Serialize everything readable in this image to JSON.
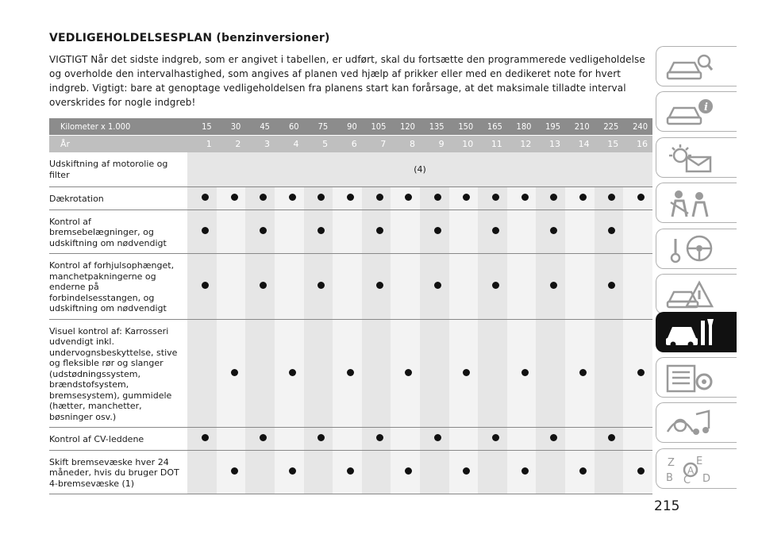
{
  "page": {
    "title": "VEDLIGEHOLDELSESPLAN (benzinversioner)",
    "intro": "VIGTIGT Når det sidste indgreb, som er angivet i tabellen, er udført, skal du fortsætte den programmerede vedligeholdelse og overholde den intervalhastighed, som angives af planen ved hjælp af prikker eller med en dedikeret note for hvert indgreb. Vigtigt: bare at genoptage vedligeholdelsen fra planens start kan forårsage, at det maksimale tilladte interval overskrides for nogle indgreb!",
    "page_number": "215"
  },
  "table": {
    "km_label": "Kilometer x 1.000",
    "km_values": [
      "15",
      "30",
      "45",
      "60",
      "75",
      "90",
      "105",
      "120",
      "135",
      "150",
      "165",
      "180",
      "195",
      "210",
      "225",
      "240"
    ],
    "year_label": "År",
    "year_values": [
      "1",
      "2",
      "3",
      "4",
      "5",
      "6",
      "7",
      "8",
      "9",
      "10",
      "11",
      "12",
      "13",
      "14",
      "15",
      "16"
    ],
    "rows": [
      {
        "label": "Udskiftning af motorolie og filter",
        "note": "(4)",
        "marks": [],
        "height": 44
      },
      {
        "label": "Dækrotation",
        "marks": [
          1,
          1,
          1,
          1,
          1,
          1,
          1,
          1,
          1,
          1,
          1,
          1,
          1,
          1,
          1,
          1
        ],
        "height": 27
      },
      {
        "label": "Kontrol af bremsebelægninger, og udskiftning om nødvendigt",
        "marks": [
          1,
          0,
          1,
          0,
          1,
          0,
          1,
          0,
          1,
          0,
          1,
          0,
          1,
          0,
          1,
          0
        ],
        "height": 54
      },
      {
        "label": "Kontrol af forhjulsophænget, manchetpakningerne og enderne på forbindelsesstangen, og udskiftning om nødvendigt",
        "marks": [
          1,
          0,
          1,
          0,
          1,
          0,
          1,
          0,
          1,
          0,
          1,
          0,
          1,
          0,
          1,
          0
        ],
        "height": 80
      },
      {
        "label": "Visuel kontrol af: Karrosseri udvendigt inkl. undervognsbeskyttelse, stive og fleksible rør og slanger (udstødningssystem, brændstofsystem, bremsesystem), gummidele (hætter, manchetter, bøsninger osv.)",
        "marks": [
          0,
          1,
          0,
          1,
          0,
          1,
          0,
          1,
          0,
          1,
          0,
          1,
          0,
          1,
          0,
          1
        ],
        "height": 134
      },
      {
        "label": "Kontrol af CV-leddene",
        "marks": [
          1,
          0,
          1,
          0,
          1,
          0,
          1,
          0,
          1,
          0,
          1,
          0,
          1,
          0,
          1,
          0
        ],
        "height": 27
      },
      {
        "label": "Skift bremsevæske hver 24 måneder, hvis du bruger DOT 4-bremsevæske (1)",
        "marks": [
          0,
          1,
          0,
          1,
          0,
          1,
          0,
          1,
          0,
          1,
          0,
          1,
          0,
          1,
          0,
          1
        ],
        "height": 50
      }
    ]
  },
  "sidebar": {
    "tabs": [
      {
        "icon": "car-search-icon",
        "active": false
      },
      {
        "icon": "car-info-icon",
        "active": false
      },
      {
        "icon": "warning-lights-icon",
        "active": false
      },
      {
        "icon": "seatbelt-airbag-icon",
        "active": false
      },
      {
        "icon": "starting-driving-icon",
        "active": false
      },
      {
        "icon": "emergency-icon",
        "active": false
      },
      {
        "icon": "maintenance-icon",
        "active": true
      },
      {
        "icon": "technical-data-icon",
        "active": false
      },
      {
        "icon": "multimedia-icon",
        "active": false
      },
      {
        "icon": "index-icon",
        "active": false
      }
    ]
  }
}
